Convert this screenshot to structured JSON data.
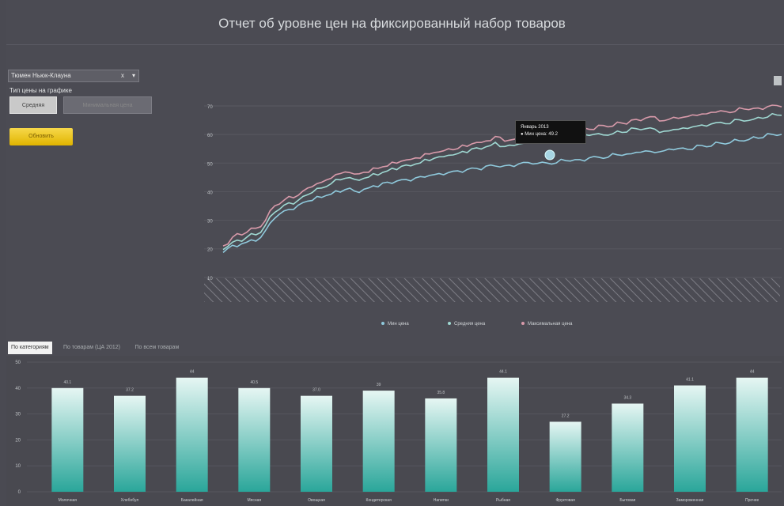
{
  "header": {
    "title": "Отчет об уровне цен на фиксированный набор товаров"
  },
  "sidebar": {
    "select_value": "Тюмен Ньюк-Клауна",
    "select_clear": "x",
    "select_chevron": "▾",
    "label": "Тип цены на графике",
    "toggle_a": "Средняя",
    "toggle_b": "Минимальная цена",
    "refresh_label": "Обновить"
  },
  "tooltip": {
    "line1": "Январь 2013",
    "line2": "● Мин цена: 49.2"
  },
  "tabs": [
    "По категориям",
    "По товарам (ЦА 2012)",
    "По всем товарам"
  ],
  "colors": {
    "max": "#d89aaa",
    "avg": "#9fd8d2",
    "min": "#8fc9dc",
    "bar_top": "#e6f6f3",
    "bar_bottom": "#2aa69a"
  },
  "chart_data": [
    {
      "type": "line",
      "ylim": [
        0,
        70
      ],
      "yticks": [
        "10",
        "20",
        "30",
        "40",
        "50",
        "60",
        "70"
      ],
      "legend": [
        "Мин цена",
        "Средняя цена",
        "Максимальная цена"
      ],
      "legend_position": "bottom",
      "grid": true,
      "x_points": 120,
      "series": [
        {
          "name": "Максимальная цена",
          "values": [
            21,
            22,
            24,
            25,
            25,
            26,
            27,
            27,
            28,
            30,
            33,
            35,
            36,
            37,
            38,
            38,
            39,
            40,
            41,
            42,
            43,
            43,
            44,
            45,
            46,
            46,
            47,
            47,
            46,
            46,
            47,
            47,
            48,
            48,
            49,
            49,
            50,
            50,
            51,
            51,
            51,
            52,
            52,
            53,
            53,
            54,
            54,
            54,
            55,
            55,
            55,
            56,
            56,
            57,
            57,
            57,
            58,
            58,
            59,
            59,
            58,
            58,
            58,
            59,
            59,
            59,
            59,
            60,
            60,
            60,
            60,
            60,
            60,
            61,
            61,
            61,
            61,
            62,
            62,
            62,
            63,
            63,
            63,
            63,
            64,
            64,
            64,
            65,
            65,
            65,
            66,
            66,
            66,
            65,
            65,
            65,
            66,
            66,
            66,
            66,
            67,
            67,
            67,
            67,
            68,
            68,
            68,
            68,
            68,
            68,
            69,
            69,
            69,
            69,
            69,
            69,
            70,
            70,
            70,
            70
          ]
        },
        {
          "name": "Средняя цена",
          "values": [
            20,
            21,
            22,
            23,
            23,
            24,
            25,
            25,
            26,
            28,
            31,
            33,
            34,
            35,
            36,
            36,
            37,
            38,
            39,
            40,
            41,
            41,
            42,
            43,
            44,
            44,
            45,
            45,
            44,
            44,
            45,
            45,
            46,
            46,
            47,
            47,
            48,
            48,
            49,
            49,
            49,
            50,
            50,
            51,
            51,
            52,
            52,
            52,
            53,
            53,
            53,
            54,
            54,
            55,
            55,
            55,
            56,
            56,
            57,
            56,
            56,
            56,
            56,
            57,
            57,
            57,
            57,
            58,
            58,
            58,
            58,
            58,
            58,
            59,
            59,
            59,
            59,
            60,
            60,
            60,
            60,
            60,
            60,
            60,
            61,
            61,
            61,
            62,
            62,
            62,
            62,
            62,
            62,
            61,
            61,
            61,
            62,
            62,
            62,
            62,
            63,
            63,
            63,
            63,
            64,
            64,
            64,
            64,
            64,
            65,
            65,
            65,
            65,
            65,
            66,
            66,
            66,
            67,
            67,
            67
          ]
        },
        {
          "name": "Мин цена",
          "values": [
            19,
            20,
            21,
            21,
            22,
            22,
            23,
            23,
            24,
            26,
            29,
            31,
            32,
            33,
            34,
            34,
            35,
            36,
            37,
            37,
            38,
            38,
            39,
            39,
            40,
            40,
            41,
            41,
            40,
            40,
            41,
            41,
            42,
            42,
            43,
            43,
            43,
            44,
            44,
            44,
            44,
            45,
            45,
            45,
            46,
            46,
            46,
            46,
            47,
            47,
            47,
            47,
            48,
            48,
            48,
            48,
            49,
            49,
            49,
            49,
            49,
            49,
            49,
            50,
            50,
            50,
            50,
            50,
            50,
            50,
            50,
            50,
            51,
            51,
            51,
            51,
            51,
            51,
            52,
            52,
            52,
            52,
            52,
            53,
            53,
            53,
            53,
            53,
            54,
            54,
            54,
            54,
            54,
            54,
            54,
            55,
            55,
            55,
            55,
            55,
            55,
            56,
            56,
            56,
            56,
            57,
            57,
            57,
            57,
            58,
            58,
            58,
            58,
            59,
            59,
            59,
            60,
            60,
            60,
            60
          ]
        }
      ]
    },
    {
      "type": "bar",
      "ylim": [
        0,
        50
      ],
      "yticks": [
        "0",
        "10",
        "20",
        "30",
        "40",
        "50"
      ],
      "categories": [
        "Молочная",
        "Хлебобул",
        "Бакалейная",
        "Мясная",
        "Овощная",
        "Кондитерская",
        "Напитки",
        "Рыбная",
        "Фруктовая",
        "Бытовая",
        "Замороженная",
        "Прочее"
      ],
      "values": [
        40,
        37,
        44,
        40,
        37,
        39,
        36,
        44,
        27,
        34,
        41,
        44
      ],
      "value_labels": [
        "40.1",
        "37.2",
        "44",
        "40.5",
        "37.0",
        "39",
        "35.8",
        "44.1",
        "27.2",
        "34.3",
        "41.1",
        "44"
      ]
    }
  ]
}
